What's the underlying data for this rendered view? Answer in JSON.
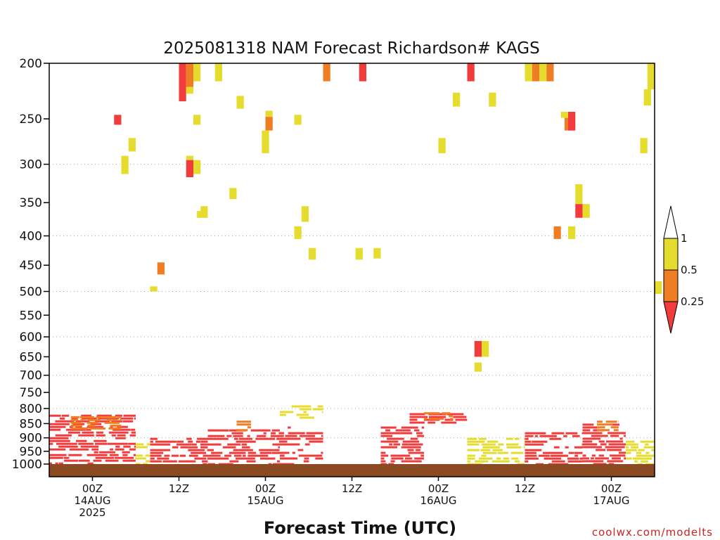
{
  "colors": {
    "band_lt_025": "#f23b3b",
    "band_025_05": "#ef7d23",
    "band_05_1": "#e5dc2e",
    "band_gt_1": "#ffffff",
    "terrain": "#8b4a22",
    "grid": "#aaaaaa",
    "credit": "#cc2222"
  },
  "chart_data": {
    "type": "heatmap",
    "title": "2025081318 NAM Forecast Richardson# KAGS",
    "xlabel": "Forecast Time (UTC)",
    "ylabel": "",
    "x_units": "hours from 2025-08-13 18Z",
    "xlim": [
      0,
      84
    ],
    "y_scale": "log",
    "ylim": [
      1000,
      200
    ],
    "ytick_labels": [
      "200",
      "250",
      "300",
      "350",
      "400",
      "450",
      "500",
      "550",
      "600",
      "650",
      "700",
      "750",
      "800",
      "850",
      "900",
      "950",
      "1000"
    ],
    "grid_levels": [
      300,
      400,
      500,
      600,
      700,
      800,
      900
    ],
    "xticks": [
      {
        "hour": 6,
        "label": "00Z",
        "date": "14AUG",
        "year": "2025"
      },
      {
        "hour": 18,
        "label": "12Z",
        "date": "",
        "year": ""
      },
      {
        "hour": 30,
        "label": "00Z",
        "date": "15AUG",
        "year": ""
      },
      {
        "hour": 42,
        "label": "12Z",
        "date": "",
        "year": ""
      },
      {
        "hour": 54,
        "label": "00Z",
        "date": "16AUG",
        "year": ""
      },
      {
        "hour": 66,
        "label": "12Z",
        "date": "",
        "year": ""
      },
      {
        "hour": 78,
        "label": "00Z",
        "date": "17AUG",
        "year": ""
      }
    ],
    "colorbar": {
      "levels": [
        "1",
        "0.5",
        "0.25"
      ],
      "bands": [
        "band_gt_1",
        "band_05_1",
        "band_025_05",
        "band_lt_025"
      ]
    },
    "cells": [
      {
        "h": 18,
        "p": [
          200,
          233
        ],
        "band": "lt025"
      },
      {
        "h": 19,
        "p": [
          200,
          220
        ],
        "band": "025_05"
      },
      {
        "h": 19,
        "p": [
          220,
          226
        ],
        "band": "05_1"
      },
      {
        "h": 20,
        "p": [
          200,
          215
        ],
        "band": "05_1"
      },
      {
        "h": 23,
        "p": [
          200,
          215
        ],
        "band": "05_1"
      },
      {
        "h": 26,
        "p": [
          228,
          240
        ],
        "band": "05_1"
      },
      {
        "h": 38,
        "p": [
          200,
          215
        ],
        "band": "025_05"
      },
      {
        "h": 43,
        "p": [
          200,
          215
        ],
        "band": "lt025"
      },
      {
        "h": 58,
        "p": [
          200,
          215
        ],
        "band": "lt025"
      },
      {
        "h": 56,
        "p": [
          225,
          238
        ],
        "band": "05_1"
      },
      {
        "h": 61,
        "p": [
          225,
          238
        ],
        "band": "05_1"
      },
      {
        "h": 66,
        "p": [
          200,
          215
        ],
        "band": "05_1"
      },
      {
        "h": 67,
        "p": [
          200,
          215
        ],
        "band": "025_05"
      },
      {
        "h": 68,
        "p": [
          200,
          215
        ],
        "band": "05_1"
      },
      {
        "h": 69,
        "p": [
          200,
          215
        ],
        "band": "025_05"
      },
      {
        "h": 83,
        "p": [
          200,
          222
        ],
        "band": "05_1"
      },
      {
        "h": 82.5,
        "p": [
          222,
          237
        ],
        "band": "05_1"
      },
      {
        "h": 9,
        "p": [
          246,
          256
        ],
        "band": "lt025"
      },
      {
        "h": 20,
        "p": [
          246,
          256
        ],
        "band": "05_1"
      },
      {
        "h": 30,
        "p": [
          242,
          248
        ],
        "band": "05_1"
      },
      {
        "h": 30,
        "p": [
          248,
          262
        ],
        "band": "025_05"
      },
      {
        "h": 29.5,
        "p": [
          262,
          287
        ],
        "band": "05_1"
      },
      {
        "h": 34,
        "p": [
          246,
          256
        ],
        "band": "05_1"
      },
      {
        "h": 71,
        "p": [
          243,
          249
        ],
        "band": "05_1"
      },
      {
        "h": 71.5,
        "p": [
          249,
          262
        ],
        "band": "025_05"
      },
      {
        "h": 72,
        "p": [
          243,
          262
        ],
        "band": "lt025"
      },
      {
        "h": 11,
        "p": [
          270,
          285
        ],
        "band": "05_1"
      },
      {
        "h": 54,
        "p": [
          270,
          287
        ],
        "band": "05_1"
      },
      {
        "h": 82,
        "p": [
          270,
          287
        ],
        "band": "05_1"
      },
      {
        "h": 10,
        "p": [
          290,
          312
        ],
        "band": "05_1"
      },
      {
        "h": 19,
        "p": [
          290,
          295
        ],
        "band": "05_1"
      },
      {
        "h": 19,
        "p": [
          295,
          316
        ],
        "band": "lt025"
      },
      {
        "h": 20,
        "p": [
          295,
          312
        ],
        "band": "05_1"
      },
      {
        "h": 25,
        "p": [
          330,
          345
        ],
        "band": "05_1"
      },
      {
        "h": 73,
        "p": [
          325,
          352
        ],
        "band": "05_1"
      },
      {
        "h": 73,
        "p": [
          352,
          372
        ],
        "band": "lt025"
      },
      {
        "h": 74,
        "p": [
          352,
          372
        ],
        "band": "05_1"
      },
      {
        "h": 20.5,
        "p": [
          362,
          372
        ],
        "band": "05_1"
      },
      {
        "h": 21,
        "p": [
          355,
          372
        ],
        "band": "05_1"
      },
      {
        "h": 35,
        "p": [
          355,
          378
        ],
        "band": "05_1"
      },
      {
        "h": 34,
        "p": [
          385,
          405
        ],
        "band": "05_1"
      },
      {
        "h": 70,
        "p": [
          385,
          405
        ],
        "band": "025_05"
      },
      {
        "h": 72,
        "p": [
          385,
          405
        ],
        "band": "05_1"
      },
      {
        "h": 36,
        "p": [
          420,
          440
        ],
        "band": "05_1"
      },
      {
        "h": 42.5,
        "p": [
          420,
          440
        ],
        "band": "05_1"
      },
      {
        "h": 45,
        "p": [
          420,
          438
        ],
        "band": "05_1"
      },
      {
        "h": 15,
        "p": [
          445,
          467
        ],
        "band": "025_05"
      },
      {
        "h": 14,
        "p": [
          490,
          500
        ],
        "band": "05_1"
      },
      {
        "h": 84,
        "p": [
          480,
          505
        ],
        "band": "05_1"
      },
      {
        "h": 59,
        "p": [
          610,
          650
        ],
        "band": "lt025"
      },
      {
        "h": 60,
        "p": [
          610,
          650
        ],
        "band": "05_1"
      },
      {
        "h": 59,
        "p": [
          665,
          690
        ],
        "band": "05_1"
      }
    ],
    "low_level_clusters": [
      {
        "h": [
          0,
          12
        ],
        "p": [
          820,
          1000
        ],
        "band": "lt025"
      },
      {
        "h": [
          3,
          10
        ],
        "p": [
          825,
          865
        ],
        "band": "025_05"
      },
      {
        "h": [
          12,
          14
        ],
        "p": [
          920,
          1000
        ],
        "band": "05_1"
      },
      {
        "h": [
          14,
          22
        ],
        "p": [
          900,
          1000
        ],
        "band": "lt025"
      },
      {
        "h": [
          22,
          32
        ],
        "p": [
          870,
          1000
        ],
        "band": "lt025"
      },
      {
        "h": [
          26,
          28
        ],
        "p": [
          840,
          870
        ],
        "band": "025_05"
      },
      {
        "h": [
          32,
          38
        ],
        "p": [
          860,
          1000
        ],
        "band": "lt025"
      },
      {
        "h": [
          32,
          38
        ],
        "p": [
          790,
          830
        ],
        "band": "05_1"
      },
      {
        "h": [
          46,
          52
        ],
        "p": [
          860,
          1000
        ],
        "band": "lt025"
      },
      {
        "h": [
          50,
          58
        ],
        "p": [
          815,
          850
        ],
        "band": "lt025"
      },
      {
        "h": [
          52,
          56
        ],
        "p": [
          812,
          835
        ],
        "band": "025_05"
      },
      {
        "h": [
          58,
          66
        ],
        "p": [
          900,
          1000
        ],
        "band": "05_1"
      },
      {
        "h": [
          66,
          74
        ],
        "p": [
          880,
          1000
        ],
        "band": "lt025"
      },
      {
        "h": [
          74,
          80
        ],
        "p": [
          850,
          1000
        ],
        "band": "lt025"
      },
      {
        "h": [
          76,
          79
        ],
        "p": [
          840,
          870
        ],
        "band": "025_05"
      },
      {
        "h": [
          80,
          84
        ],
        "p": [
          900,
          1000
        ],
        "band": "05_1"
      }
    ]
  },
  "credit": "coolwx.com/modelts"
}
